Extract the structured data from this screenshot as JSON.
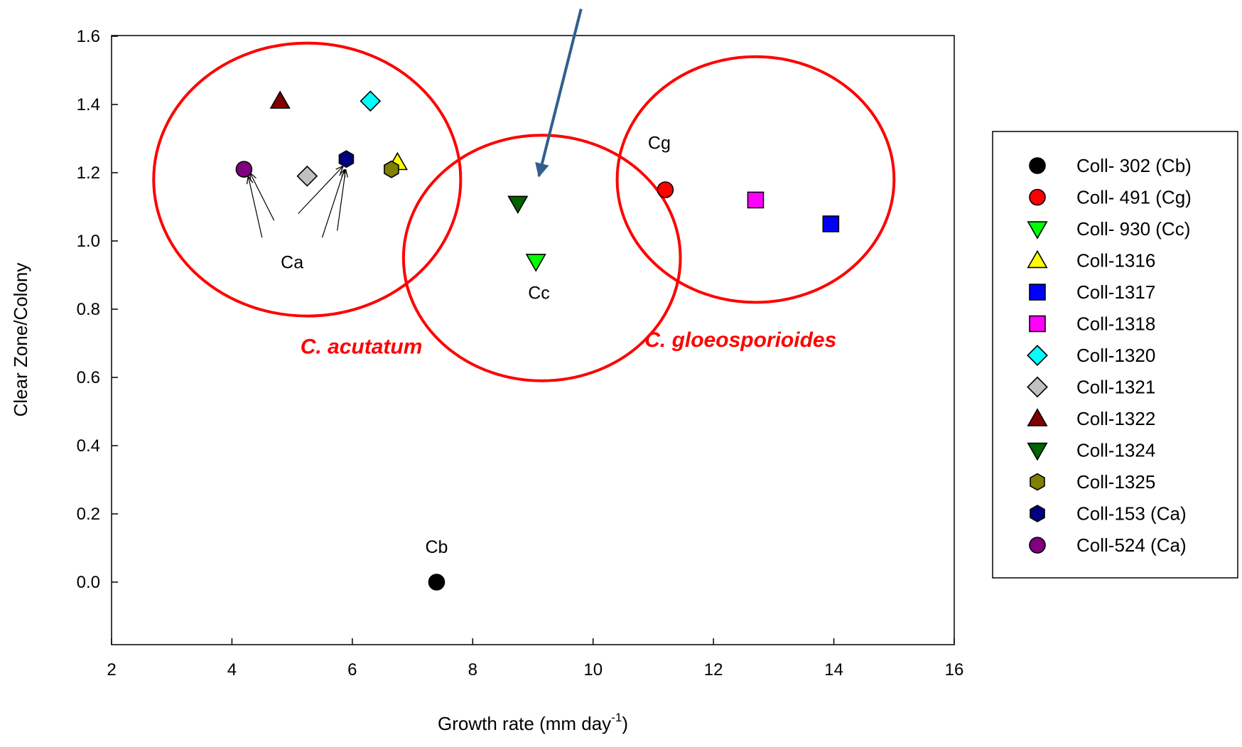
{
  "chart_data": {
    "type": "scatter",
    "title": "",
    "xlabel": "Growth rate (mm day",
    "xlabel_sup": "-1",
    "xlabel_end": ")",
    "ylabel": "Clear Zone/Colony",
    "xlim": [
      2,
      16
    ],
    "ylim": [
      -0.18,
      1.6
    ],
    "xticks": [
      "2",
      "4",
      "6",
      "8",
      "10",
      "12",
      "14",
      "16"
    ],
    "yticks": [
      "0.0",
      "0.2",
      "0.4",
      "0.6",
      "0.8",
      "1.0",
      "1.2",
      "1.4",
      "1.6"
    ],
    "grid": false,
    "legend_position": "right",
    "series": [
      {
        "name": "Coll- 302 (Cb)",
        "marker": "circle",
        "color": "#000000",
        "x": [
          7.4
        ],
        "y": [
          0.0
        ]
      },
      {
        "name": "Coll- 491 (Cg)",
        "marker": "circle",
        "color": "#ff0000",
        "x": [
          11.2
        ],
        "y": [
          1.15
        ]
      },
      {
        "name": "Coll- 930 (Cc)",
        "marker": "triangle-down",
        "color": "#00ff00",
        "x": [
          9.05
        ],
        "y": [
          0.94
        ]
      },
      {
        "name": "Coll-1316",
        "marker": "triangle-up",
        "color": "#ffff00",
        "x": [
          6.75
        ],
        "y": [
          1.23
        ]
      },
      {
        "name": "Coll-1317",
        "marker": "square",
        "color": "#0000ff",
        "x": [
          13.95
        ],
        "y": [
          1.05
        ]
      },
      {
        "name": "Coll-1318",
        "marker": "square",
        "color": "#ff00ff",
        "x": [
          12.7
        ],
        "y": [
          1.12
        ]
      },
      {
        "name": "Coll-1320",
        "marker": "diamond",
        "color": "#00ffff",
        "x": [
          6.3
        ],
        "y": [
          1.41
        ]
      },
      {
        "name": "Coll-1321",
        "marker": "diamond",
        "color": "#c0c0c0",
        "x": [
          5.25
        ],
        "y": [
          1.19
        ]
      },
      {
        "name": "Coll-1322",
        "marker": "triangle-up",
        "color": "#800000",
        "x": [
          4.8
        ],
        "y": [
          1.41
        ]
      },
      {
        "name": "Coll-1324",
        "marker": "triangle-down",
        "color": "#006400",
        "x": [
          8.75
        ],
        "y": [
          1.11
        ]
      },
      {
        "name": "Coll-1325",
        "marker": "hexagon",
        "color": "#808000",
        "x": [
          6.65
        ],
        "y": [
          1.21
        ]
      },
      {
        "name": "Coll-153 (Ca)",
        "marker": "hexagon",
        "color": "#000080",
        "x": [
          5.9
        ],
        "y": [
          1.24
        ]
      },
      {
        "name": "Coll-524 (Ca)",
        "marker": "circle",
        "color": "#800080",
        "x": [
          4.2
        ],
        "y": [
          1.21
        ]
      }
    ],
    "annotations": [
      {
        "text": "Cg",
        "x": 11.1,
        "y": 1.27,
        "kind": "label"
      },
      {
        "text": "Ca",
        "x": 5.0,
        "y": 0.92,
        "kind": "label"
      },
      {
        "text": "Cc",
        "x": 9.1,
        "y": 0.83,
        "kind": "label"
      },
      {
        "text": "Cb",
        "x": 7.4,
        "y": 0.085,
        "kind": "label"
      },
      {
        "text": "C. acutatum",
        "x": 6.15,
        "y": 0.67,
        "kind": "group"
      },
      {
        "text": "C. gloeosporioides",
        "x": 12.45,
        "y": 0.69,
        "kind": "group"
      }
    ],
    "group_ellipses": [
      {
        "cx": 5.25,
        "cy": 1.18,
        "rx": 2.55,
        "ry": 0.4
      },
      {
        "cx": 9.15,
        "cy": 0.95,
        "rx": 2.3,
        "ry": 0.36
      },
      {
        "cx": 12.7,
        "cy": 1.18,
        "rx": 2.3,
        "ry": 0.36
      }
    ],
    "pointer_arrows": [
      {
        "from": [
          4.7,
          1.06
        ],
        "to": [
          4.3,
          1.2
        ]
      },
      {
        "from": [
          4.5,
          1.01
        ],
        "to": [
          4.27,
          1.19
        ]
      },
      {
        "from": [
          5.1,
          1.08
        ],
        "to": [
          5.85,
          1.22
        ]
      },
      {
        "from": [
          5.5,
          1.01
        ],
        "to": [
          5.87,
          1.21
        ]
      },
      {
        "from": [
          5.75,
          1.03
        ],
        "to": [
          5.89,
          1.21
        ]
      }
    ],
    "highlight_arrow": {
      "from": [
        9.8,
        1.68
      ],
      "to": [
        9.1,
        1.19
      ],
      "color": "#2f5f8f"
    },
    "group_color": "#ff0000"
  }
}
